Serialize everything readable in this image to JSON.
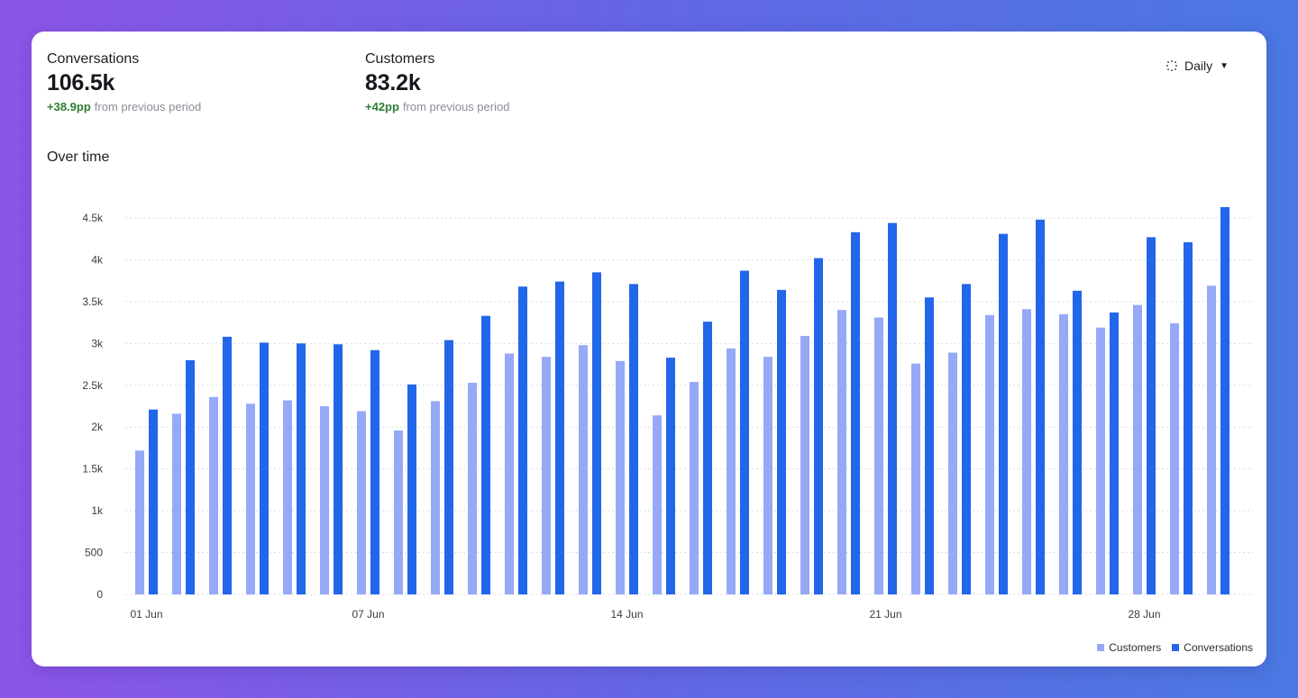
{
  "metrics": [
    {
      "title": "Conversations",
      "value": "106.5k",
      "delta": "+38.9pp",
      "delta_text": "from previous period"
    },
    {
      "title": "Customers",
      "value": "83.2k",
      "delta": "+42pp",
      "delta_text": "from previous period"
    }
  ],
  "interval": {
    "label": "Daily",
    "icon": "grid-dots-icon",
    "caret": "caret-down-icon"
  },
  "section_title": "Over time",
  "chart_data": {
    "type": "bar",
    "categories": [
      "01 Jun",
      "02 Jun",
      "03 Jun",
      "04 Jun",
      "05 Jun",
      "06 Jun",
      "07 Jun",
      "08 Jun",
      "09 Jun",
      "10 Jun",
      "11 Jun",
      "12 Jun",
      "13 Jun",
      "14 Jun",
      "15 Jun",
      "16 Jun",
      "17 Jun",
      "18 Jun",
      "19 Jun",
      "20 Jun",
      "21 Jun",
      "22 Jun",
      "23 Jun",
      "24 Jun",
      "25 Jun",
      "26 Jun",
      "27 Jun",
      "28 Jun",
      "29 Jun",
      "30 Jun"
    ],
    "x_tick_labels": [
      "01 Jun",
      "07 Jun",
      "14 Jun",
      "21 Jun",
      "28 Jun"
    ],
    "x_tick_categories": [
      "01 Jun",
      "07 Jun",
      "14 Jun",
      "21 Jun",
      "28 Jun"
    ],
    "series": [
      {
        "name": "Customers",
        "color": "#96a9f7",
        "values": [
          1720,
          2160,
          2360,
          2280,
          2320,
          2250,
          2190,
          1960,
          2310,
          2530,
          2880,
          2840,
          2980,
          2790,
          2140,
          2540,
          2940,
          2840,
          3090,
          3400,
          3310,
          2760,
          2890,
          3340,
          3410,
          3350,
          3190,
          3460,
          3240,
          3690
        ]
      },
      {
        "name": "Conversations",
        "color": "#2266ea",
        "values": [
          2210,
          2800,
          3080,
          3010,
          3000,
          2990,
          2920,
          2510,
          3040,
          3330,
          3680,
          3740,
          3850,
          3710,
          2830,
          3260,
          3870,
          3640,
          4020,
          4330,
          4440,
          3550,
          3710,
          4310,
          4480,
          3630,
          3370,
          4270,
          4210,
          4630
        ]
      }
    ],
    "y_ticks": [
      "0",
      "500",
      "1k",
      "1.5k",
      "2k",
      "2.5k",
      "3k",
      "3.5k",
      "4k",
      "4.5k"
    ],
    "ylim": [
      0,
      4500
    ],
    "grid": true,
    "legend_position": "bottom-right",
    "title": "",
    "xlabel": "",
    "ylabel": ""
  }
}
